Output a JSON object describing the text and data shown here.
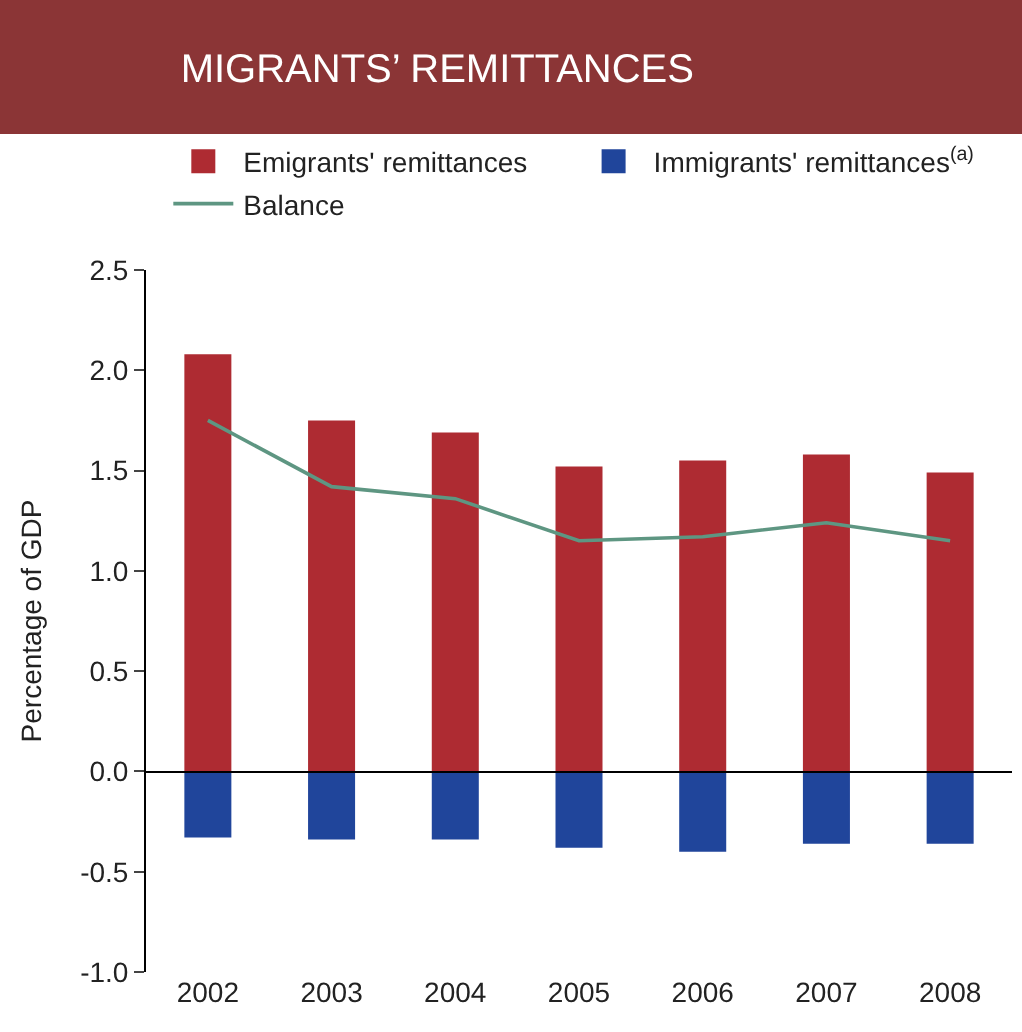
{
  "chart_data": {
    "type": "bar",
    "title": "MIGRANTS’ REMITTANCES",
    "ylabel": "Percentage of GDP",
    "categories": [
      "2002",
      "2003",
      "2004",
      "2005",
      "2006",
      "2007",
      "2008"
    ],
    "stacked": true,
    "series": [
      {
        "name": "Emigrants' remittances",
        "color": "#ae2b32",
        "values": [
          2.08,
          1.75,
          1.69,
          1.52,
          1.55,
          1.58,
          1.49
        ]
      },
      {
        "name": "Immigrants' remittances$^{(a)}$",
        "color": "#20459b",
        "values": [
          -0.33,
          -0.34,
          -0.34,
          -0.38,
          -0.4,
          -0.36,
          -0.36
        ]
      },
      {
        "name": "Balance",
        "type": "line",
        "color": "#5e9682",
        "values": [
          1.75,
          1.42,
          1.36,
          1.15,
          1.17,
          1.24,
          1.15
        ]
      }
    ],
    "ylim": [
      -1.0,
      2.5
    ],
    "yticks": [
      {
        "value": -1.0,
        "label": "-1.0"
      },
      {
        "value": -0.5,
        "label": "-0.5"
      },
      {
        "value": 0,
        "label": "0.0"
      },
      {
        "value": 0.5,
        "label": "0.5"
      },
      {
        "value": 1.0,
        "label": "1.0"
      },
      {
        "value": 1.5,
        "label": "1.5"
      },
      {
        "value": 2.0,
        "label": "2.0"
      },
      {
        "value": 2.5,
        "label": "2.5"
      }
    ],
    "legend": "top left",
    "marker": "none",
    "line_style": "solid"
  }
}
